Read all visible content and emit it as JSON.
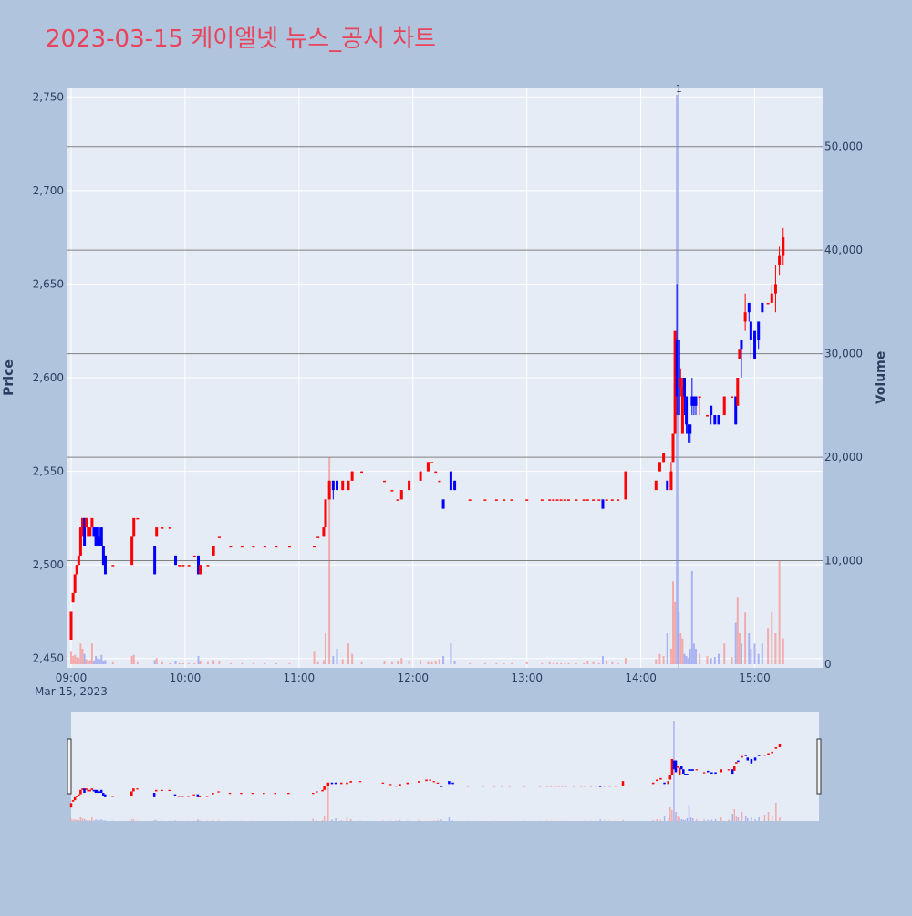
{
  "title": "2023-03-15 케이엘넷 뉴스_공시 차트",
  "colors": {
    "page_bg": "#b0c4de",
    "plot_bg": "#e5ecf6",
    "title": "#e8435a",
    "up": "#ff0000",
    "down": "#0000ff",
    "up_volume": "#f4a0a0",
    "down_volume": "#a0a8f0",
    "news_line": "#8090e8",
    "hline": "#808080"
  },
  "chart_data": {
    "type": "candlestick",
    "title": "2023-03-15 케이엘넷 뉴스_공시 차트",
    "ylabel": "Price",
    "y2label": "Volume",
    "ylim": [
      2445,
      2755
    ],
    "y2lim": [
      0,
      55000
    ],
    "xlim": [
      "09:00",
      "15:30"
    ],
    "xticks": [
      "09:00",
      "10:00",
      "11:00",
      "12:00",
      "13:00",
      "14:00",
      "15:00"
    ],
    "xdate_label": "Mar 15, 2023",
    "yticks": [
      "2,450",
      "2,500",
      "2,550",
      "2,600",
      "2,650",
      "2,700",
      "2,750"
    ],
    "y2ticks": [
      "0",
      "10,000",
      "20,000",
      "30,000",
      "40,000",
      "50,000"
    ],
    "hlines_volume": [
      10000,
      20000,
      30000,
      40000,
      50000
    ],
    "news_markers": [
      {
        "time": "14:20",
        "label": "1"
      }
    ],
    "grid": true,
    "range_slider": true,
    "candles": [
      [
        "09:00",
        2460,
        2475,
        2460,
        2475,
        1200
      ],
      [
        "09:01",
        2480,
        2485,
        2480,
        2485,
        800
      ],
      [
        "09:02",
        2485,
        2495,
        2485,
        2495,
        900
      ],
      [
        "09:03",
        2495,
        2500,
        2495,
        2500,
        700
      ],
      [
        "09:04",
        2500,
        2505,
        2500,
        2505,
        600
      ],
      [
        "09:05",
        2505,
        2520,
        2505,
        2520,
        2000
      ],
      [
        "09:06",
        2520,
        2525,
        2515,
        2525,
        1500
      ],
      [
        "09:07",
        2525,
        2525,
        2510,
        2510,
        1000
      ],
      [
        "09:08",
        2520,
        2525,
        2520,
        2525,
        500
      ],
      [
        "09:09",
        2515,
        2520,
        2515,
        2520,
        300
      ],
      [
        "09:10",
        2515,
        2520,
        2515,
        2520,
        400
      ],
      [
        "09:11",
        2520,
        2525,
        2520,
        2525,
        2000
      ],
      [
        "09:12",
        2520,
        2520,
        2515,
        2515,
        300
      ],
      [
        "09:13",
        2520,
        2520,
        2510,
        2510,
        800
      ],
      [
        "09:14",
        2520,
        2520,
        2510,
        2510,
        600
      ],
      [
        "09:15",
        2515,
        2520,
        2510,
        2510,
        500
      ],
      [
        "09:16",
        2520,
        2520,
        2510,
        2510,
        900
      ],
      [
        "09:17",
        2510,
        2510,
        2500,
        2500,
        300
      ],
      [
        "09:18",
        2505,
        2505,
        2495,
        2495,
        400
      ],
      [
        "09:22",
        2500,
        2500,
        2500,
        2500,
        200
      ],
      [
        "09:32",
        2500,
        2515,
        2500,
        2515,
        800
      ],
      [
        "09:33",
        2515,
        2525,
        2515,
        2525,
        900
      ],
      [
        "09:35",
        2525,
        2525,
        2525,
        2525,
        200
      ],
      [
        "09:44",
        2510,
        2510,
        2495,
        2495,
        400
      ],
      [
        "09:45",
        2515,
        2520,
        2515,
        2520,
        600
      ],
      [
        "09:48",
        2520,
        2520,
        2520,
        2520,
        200
      ],
      [
        "09:52",
        2520,
        2520,
        2520,
        2520,
        100
      ],
      [
        "09:55",
        2505,
        2505,
        2500,
        2500,
        300
      ],
      [
        "09:57",
        2500,
        2500,
        2500,
        2500,
        100
      ],
      [
        "09:59",
        2500,
        2500,
        2500,
        2500,
        100
      ],
      [
        "10:02",
        2500,
        2500,
        2500,
        2500,
        100
      ],
      [
        "10:05",
        2505,
        2505,
        2505,
        2505,
        100
      ],
      [
        "10:07",
        2505,
        2505,
        2495,
        2495,
        800
      ],
      [
        "10:08",
        2495,
        2500,
        2495,
        2500,
        300
      ],
      [
        "10:12",
        2500,
        2500,
        2500,
        2500,
        200
      ],
      [
        "10:15",
        2505,
        2510,
        2505,
        2510,
        400
      ],
      [
        "10:18",
        2515,
        2515,
        2515,
        2515,
        300
      ],
      [
        "10:24",
        2510,
        2510,
        2510,
        2510,
        100
      ],
      [
        "10:30",
        2510,
        2510,
        2510,
        2510,
        100
      ],
      [
        "10:36",
        2510,
        2510,
        2510,
        2510,
        100
      ],
      [
        "10:42",
        2510,
        2510,
        2510,
        2510,
        100
      ],
      [
        "10:48",
        2510,
        2510,
        2510,
        2510,
        100
      ],
      [
        "10:55",
        2510,
        2510,
        2510,
        2510,
        100
      ],
      [
        "11:08",
        2510,
        2510,
        2510,
        2510,
        1200
      ],
      [
        "11:10",
        2515,
        2515,
        2515,
        2515,
        200
      ],
      [
        "11:13",
        2515,
        2520,
        2515,
        2520,
        400
      ],
      [
        "11:14",
        2520,
        2535,
        2520,
        2535,
        3000
      ],
      [
        "11:16",
        2535,
        2545,
        2535,
        2545,
        20000
      ],
      [
        "11:18",
        2545,
        2545,
        2535,
        2540,
        800
      ],
      [
        "11:20",
        2545,
        2545,
        2540,
        2540,
        1500
      ],
      [
        "11:23",
        2540,
        2545,
        2540,
        2545,
        500
      ],
      [
        "11:26",
        2540,
        2545,
        2540,
        2545,
        2000
      ],
      [
        "11:28",
        2545,
        2550,
        2545,
        2550,
        1000
      ],
      [
        "11:33",
        2550,
        2550,
        2550,
        2550,
        200
      ],
      [
        "11:45",
        2545,
        2545,
        2545,
        2545,
        300
      ],
      [
        "11:49",
        2540,
        2540,
        2540,
        2540,
        200
      ],
      [
        "11:52",
        2535,
        2535,
        2535,
        2535,
        300
      ],
      [
        "11:54",
        2535,
        2540,
        2535,
        2540,
        600
      ],
      [
        "11:58",
        2540,
        2545,
        2540,
        2545,
        300
      ],
      [
        "12:04",
        2545,
        2550,
        2545,
        2550,
        400
      ],
      [
        "12:08",
        2550,
        2555,
        2550,
        2555,
        200
      ],
      [
        "12:10",
        2555,
        2555,
        2555,
        2555,
        200
      ],
      [
        "12:12",
        2550,
        2550,
        2550,
        2550,
        300
      ],
      [
        "12:14",
        2545,
        2545,
        2545,
        2545,
        500
      ],
      [
        "12:16",
        2535,
        2535,
        2530,
        2530,
        800
      ],
      [
        "12:20",
        2550,
        2550,
        2540,
        2540,
        2000
      ],
      [
        "12:22",
        2545,
        2545,
        2540,
        2540,
        300
      ],
      [
        "12:30",
        2535,
        2535,
        2535,
        2535,
        100
      ],
      [
        "12:38",
        2535,
        2535,
        2535,
        2535,
        100
      ],
      [
        "12:44",
        2535,
        2535,
        2535,
        2535,
        100
      ],
      [
        "12:48",
        2535,
        2535,
        2535,
        2535,
        100
      ],
      [
        "12:52",
        2535,
        2535,
        2535,
        2535,
        100
      ],
      [
        "13:00",
        2535,
        2535,
        2535,
        2535,
        200
      ],
      [
        "13:08",
        2535,
        2535,
        2535,
        2535,
        100
      ],
      [
        "13:12",
        2535,
        2535,
        2535,
        2535,
        200
      ],
      [
        "13:14",
        2535,
        2535,
        2535,
        2535,
        100
      ],
      [
        "13:16",
        2535,
        2535,
        2535,
        2535,
        100
      ],
      [
        "13:18",
        2535,
        2535,
        2535,
        2535,
        100
      ],
      [
        "13:20",
        2535,
        2535,
        2535,
        2535,
        100
      ],
      [
        "13:22",
        2535,
        2535,
        2535,
        2535,
        100
      ],
      [
        "13:26",
        2535,
        2535,
        2535,
        2535,
        100
      ],
      [
        "13:30",
        2535,
        2535,
        2535,
        2535,
        100
      ],
      [
        "13:32",
        2535,
        2535,
        2535,
        2535,
        300
      ],
      [
        "13:35",
        2535,
        2535,
        2535,
        2535,
        200
      ],
      [
        "13:38",
        2535,
        2535,
        2535,
        2535,
        100
      ],
      [
        "13:40",
        2535,
        2535,
        2530,
        2530,
        800
      ],
      [
        "13:42",
        2535,
        2535,
        2535,
        2535,
        300
      ],
      [
        "13:45",
        2535,
        2535,
        2535,
        2535,
        200
      ],
      [
        "13:48",
        2535,
        2535,
        2535,
        2535,
        100
      ],
      [
        "13:52",
        2535,
        2550,
        2535,
        2550,
        600
      ],
      [
        "14:08",
        2540,
        2545,
        2540,
        2545,
        500
      ],
      [
        "14:10",
        2550,
        2555,
        2550,
        2555,
        1000
      ],
      [
        "14:12",
        2555,
        2560,
        2555,
        2560,
        800
      ],
      [
        "14:14",
        2545,
        2545,
        2540,
        2540,
        3000
      ],
      [
        "14:16",
        2540,
        2555,
        2540,
        2550,
        1500
      ],
      [
        "14:17",
        2555,
        2570,
        2555,
        2570,
        8000
      ],
      [
        "14:18",
        2570,
        2625,
        2570,
        2625,
        6000
      ],
      [
        "14:19",
        2620,
        2650,
        2580,
        2590,
        55000
      ],
      [
        "14:20",
        2620,
        2620,
        2570,
        2580,
        5000
      ],
      [
        "14:21",
        2595,
        2605,
        2590,
        2600,
        3000
      ],
      [
        "14:22",
        2570,
        2600,
        2570,
        2595,
        2500
      ],
      [
        "14:23",
        2600,
        2600,
        2580,
        2590,
        1000
      ],
      [
        "14:24",
        2590,
        2590,
        2570,
        2575,
        800
      ],
      [
        "14:25",
        2575,
        2575,
        2565,
        2570,
        600
      ],
      [
        "14:26",
        2575,
        2575,
        2565,
        2570,
        1500
      ],
      [
        "14:27",
        2590,
        2600,
        2580,
        2585,
        9000
      ],
      [
        "14:28",
        2590,
        2590,
        2580,
        2585,
        2000
      ],
      [
        "14:29",
        2590,
        2590,
        2580,
        2585,
        1500
      ],
      [
        "14:31",
        2590,
        2590,
        2580,
        2590,
        1000
      ],
      [
        "14:35",
        2580,
        2580,
        2580,
        2580,
        800
      ],
      [
        "14:37",
        2585,
        2585,
        2575,
        2580,
        600
      ],
      [
        "14:39",
        2580,
        2580,
        2575,
        2575,
        700
      ],
      [
        "14:41",
        2580,
        2580,
        2575,
        2575,
        1000
      ],
      [
        "14:44",
        2580,
        2590,
        2580,
        2590,
        2000
      ],
      [
        "14:48",
        2590,
        2590,
        2590,
        2590,
        700
      ],
      [
        "14:50",
        2590,
        2590,
        2575,
        2575,
        4000
      ],
      [
        "14:51",
        2585,
        2600,
        2585,
        2600,
        6500
      ],
      [
        "14:52",
        2610,
        2615,
        2610,
        2615,
        3000
      ],
      [
        "14:53",
        2620,
        2620,
        2600,
        2615,
        2000
      ],
      [
        "14:55",
        2630,
        2645,
        2625,
        2635,
        5000
      ],
      [
        "14:57",
        2640,
        2640,
        2630,
        2635,
        3000
      ],
      [
        "14:58",
        2630,
        2630,
        2610,
        2620,
        1500
      ],
      [
        "15:00",
        2625,
        2625,
        2610,
        2610,
        2000
      ],
      [
        "15:02",
        2630,
        2630,
        2615,
        2620,
        1000
      ],
      [
        "15:04",
        2640,
        2640,
        2635,
        2635,
        2000
      ],
      [
        "15:07",
        2640,
        2640,
        2640,
        2640,
        3500
      ],
      [
        "15:09",
        2640,
        2650,
        2640,
        2645,
        5000
      ],
      [
        "15:11",
        2645,
        2660,
        2635,
        2650,
        3000
      ],
      [
        "15:13",
        2660,
        2670,
        2655,
        2665,
        10000
      ],
      [
        "15:15",
        2665,
        2680,
        2660,
        2675,
        2500
      ]
    ]
  }
}
